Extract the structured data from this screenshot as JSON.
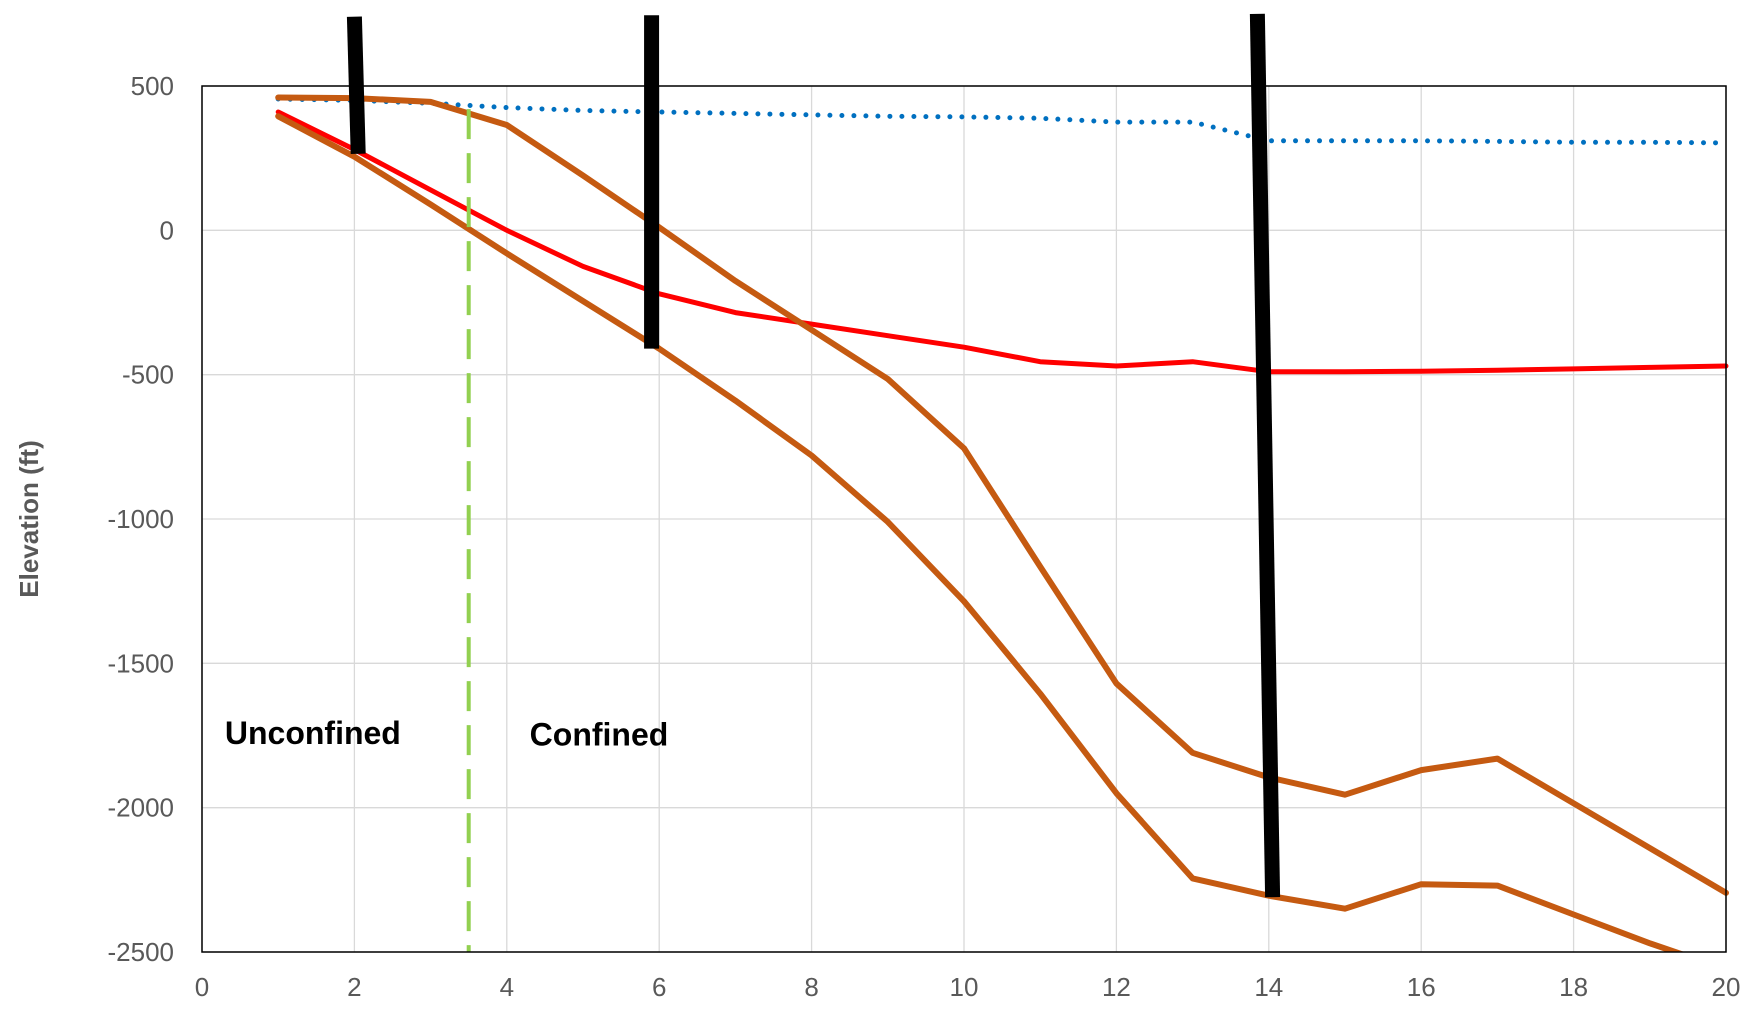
{
  "chart_data": {
    "type": "line",
    "title": "",
    "xlabel": "",
    "ylabel": "Elevation (ft)",
    "xlim": [
      0,
      20
    ],
    "ylim": [
      -2500,
      500
    ],
    "xticks": [
      0,
      2,
      4,
      6,
      8,
      10,
      12,
      14,
      16,
      18,
      20
    ],
    "yticks": [
      500,
      0,
      -500,
      -1000,
      -1500,
      -2000,
      -2500
    ],
    "grid": true,
    "legend": "none",
    "series": [
      {
        "color": "#0070c0",
        "style": "dotted",
        "x": [
          1,
          2,
          3,
          4,
          5,
          6,
          7,
          8,
          9,
          10,
          11,
          12,
          13,
          14,
          15,
          16,
          17,
          18,
          19,
          20
        ],
        "y": [
          455,
          450,
          440,
          425,
          415,
          410,
          405,
          400,
          395,
          393,
          388,
          375,
          375,
          310,
          310,
          310,
          308,
          305,
          305,
          303
        ]
      },
      {
        "color": "#ff0000",
        "style": "solid",
        "x": [
          1,
          2,
          3,
          4,
          5,
          6,
          7,
          8,
          9,
          10,
          11,
          12,
          13,
          14,
          15,
          16,
          17,
          18,
          19,
          20
        ],
        "y": [
          410,
          280,
          140,
          0,
          -125,
          -220,
          -285,
          -325,
          -365,
          -405,
          -455,
          -470,
          -455,
          -490,
          -490,
          -488,
          -485,
          -480,
          -475,
          -470
        ]
      },
      {
        "color": "#c55a11",
        "style": "solid",
        "x": [
          1,
          2,
          3,
          4,
          5,
          6,
          7,
          8,
          9,
          10,
          11,
          12,
          13,
          14,
          15,
          16,
          17,
          18,
          19,
          20
        ],
        "y": [
          460,
          458,
          445,
          365,
          190,
          10,
          -175,
          -345,
          -515,
          -755,
          -1165,
          -1570,
          -1810,
          -1895,
          -1955,
          -1870,
          -1830,
          -1985,
          -2140,
          -2295
        ]
      },
      {
        "color": "#c55a11",
        "style": "solid",
        "x": [
          1,
          2,
          3,
          4,
          5,
          6,
          7,
          8,
          9,
          10,
          11,
          12,
          13,
          14,
          15,
          16,
          17,
          18,
          19,
          20
        ],
        "y": [
          395,
          255,
          90,
          -80,
          -245,
          -410,
          -590,
          -780,
          -1010,
          -1285,
          -1605,
          -1950,
          -2245,
          -2305,
          -2350,
          -2265,
          -2270,
          -2370,
          -2470,
          -2560
        ]
      }
    ],
    "wells": [
      {
        "x_top": 2.0,
        "x_bottom": 2.05,
        "y_top": 740,
        "y_bottom": 265
      },
      {
        "x_top": 5.9,
        "x_bottom": 5.9,
        "y_top": 745,
        "y_bottom": -410
      },
      {
        "x_top": 13.85,
        "x_bottom": 14.05,
        "y_top": 750,
        "y_bottom": -2310
      }
    ],
    "divider": {
      "x": 3.5,
      "y_top": 420,
      "y_bottom": -2500,
      "color": "#92d050",
      "style": "dashed"
    },
    "annotations": [
      {
        "text": "Unconfined",
        "x": 0.3,
        "y": -1780
      },
      {
        "text": "Confined",
        "x": 4.3,
        "y": -1785
      }
    ]
  }
}
